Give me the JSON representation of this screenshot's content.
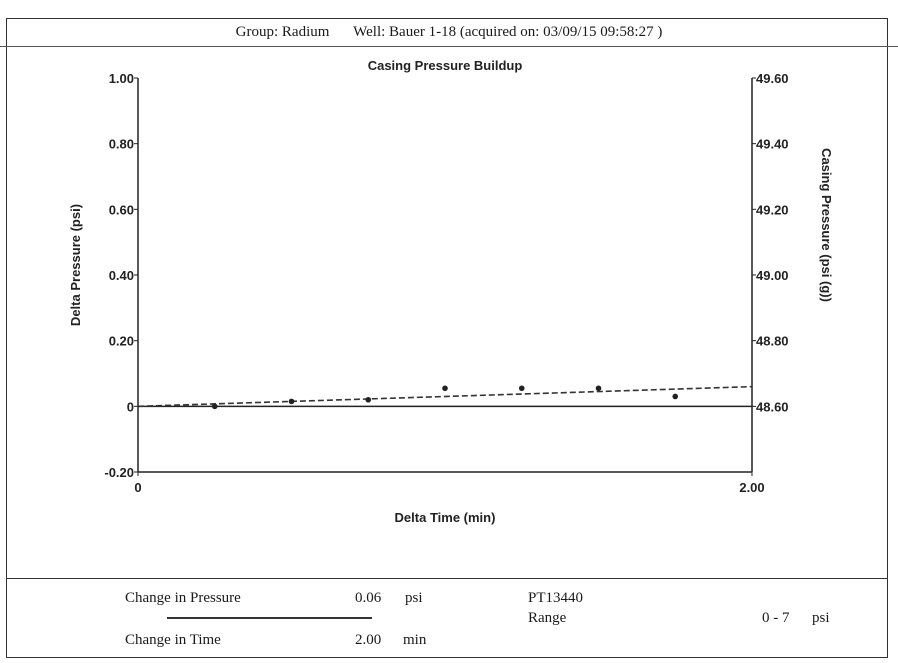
{
  "header": {
    "group": "Group: Radium",
    "well": "Well: Bauer 1-18 (acquired on: 03/09/15 09:58:27 )"
  },
  "chart_data": {
    "type": "scatter",
    "title": "Casing Pressure Buildup",
    "xlabel": "Delta Time (min)",
    "ylabel": "Delta Pressure (psi)",
    "y2label": "Casing Pressure (psi (g))",
    "xlim": [
      0,
      2.0
    ],
    "ylim": [
      -0.2,
      1.0
    ],
    "y2lim": [
      48.6,
      49.6
    ],
    "x_ticks": [
      {
        "value": 0,
        "label": "0"
      },
      {
        "value": 2.0,
        "label": "2.00"
      }
    ],
    "y_ticks": [
      {
        "value": 1.0,
        "label": "1.00"
      },
      {
        "value": 0.8,
        "label": "0.80"
      },
      {
        "value": 0.6,
        "label": "0.60"
      },
      {
        "value": 0.4,
        "label": "0.40"
      },
      {
        "value": 0.2,
        "label": "0.20"
      },
      {
        "value": 0,
        "label": "0"
      },
      {
        "value": -0.2,
        "label": "-0.20"
      }
    ],
    "y2_ticks": [
      {
        "value": 49.6,
        "label": "49.60"
      },
      {
        "value": 49.4,
        "label": "49.40"
      },
      {
        "value": 49.2,
        "label": "49.20"
      },
      {
        "value": 49.0,
        "label": "49.00"
      },
      {
        "value": 48.8,
        "label": "48.80"
      },
      {
        "value": 48.6,
        "label": "48.60"
      }
    ],
    "points": [
      {
        "x": 0.25,
        "y": 0.0
      },
      {
        "x": 0.5,
        "y": 0.015
      },
      {
        "x": 0.75,
        "y": 0.02
      },
      {
        "x": 1.0,
        "y": 0.055
      },
      {
        "x": 1.25,
        "y": 0.055
      },
      {
        "x": 1.5,
        "y": 0.055
      },
      {
        "x": 1.75,
        "y": 0.03
      }
    ],
    "fit_line": {
      "x": [
        0,
        2.0
      ],
      "y": [
        0.0,
        0.06
      ]
    },
    "grid": false
  },
  "footer": {
    "change_pressure_label": "Change in Pressure",
    "change_pressure_value": "0.06",
    "change_pressure_unit": "psi",
    "change_time_label": "Change in Time",
    "change_time_value": "2.00",
    "change_time_unit": "min",
    "sensor": "PT13440",
    "range_label": "Range",
    "range_value": "0 - 7",
    "range_unit": "psi"
  }
}
